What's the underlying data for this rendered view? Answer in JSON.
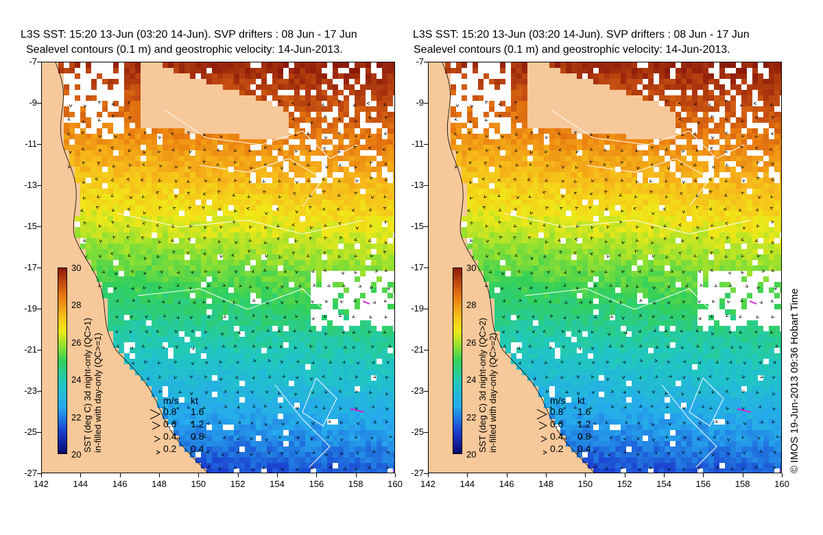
{
  "panels": [
    {
      "title_line1": "L3S SST: 15:20 13-Jun (03:20 14-Jun). SVP drifters : 08 Jun - 17 Jun",
      "title_line2": "Sealevel contours (0.1 m) and geostrophic velocity: 14-Jun-2013.",
      "colorbar_caption_line1": "SST (deg C) 3d night-only (QC>1)",
      "colorbar_caption_line2": "in-filled with day-only (QC>=1)"
    },
    {
      "title_line1": "L3S SST: 15:20 13-Jun (03:20 14-Jun). SVP drifters : 08 Jun - 17 Jun",
      "title_line2": "Sealevel contours (0.1 m) and geostrophic velocity: 14-Jun-2013.",
      "colorbar_caption_line1": "SST (deg C) 3d night-only (QC>2)",
      "colorbar_caption_line2": "in-filled with day-only (QC>=2)"
    }
  ],
  "y_ticks": [
    "-7",
    "-9",
    "-11",
    "-13",
    "-15",
    "-17",
    "-19",
    "-21",
    "-23",
    "-25",
    "-27"
  ],
  "x_ticks": [
    "142",
    "144",
    "146",
    "148",
    "150",
    "152",
    "154",
    "156",
    "158",
    "160"
  ],
  "colorbar": {
    "labels": [
      "30",
      "28",
      "26",
      "24",
      "22",
      "20"
    ],
    "range": [
      20,
      30
    ]
  },
  "legend": {
    "header_ms": "m/s",
    "header_kt": "kt",
    "rows": [
      {
        "ms": "0.8",
        "kt": "1.6"
      },
      {
        "ms": "0.6",
        "kt": "1.2"
      },
      {
        "ms": "0.4",
        "kt": "0.8"
      },
      {
        "ms": "0.2",
        "kt": "0.4"
      }
    ]
  },
  "credit": "© IMOS 19-Jun-2013 09:36 Hobart Time",
  "colors": {
    "land": "#f6c89a",
    "cloud": "#ffffff",
    "contour": "#ffffff",
    "vector": "#000000",
    "drifter": "#d020d0"
  }
}
